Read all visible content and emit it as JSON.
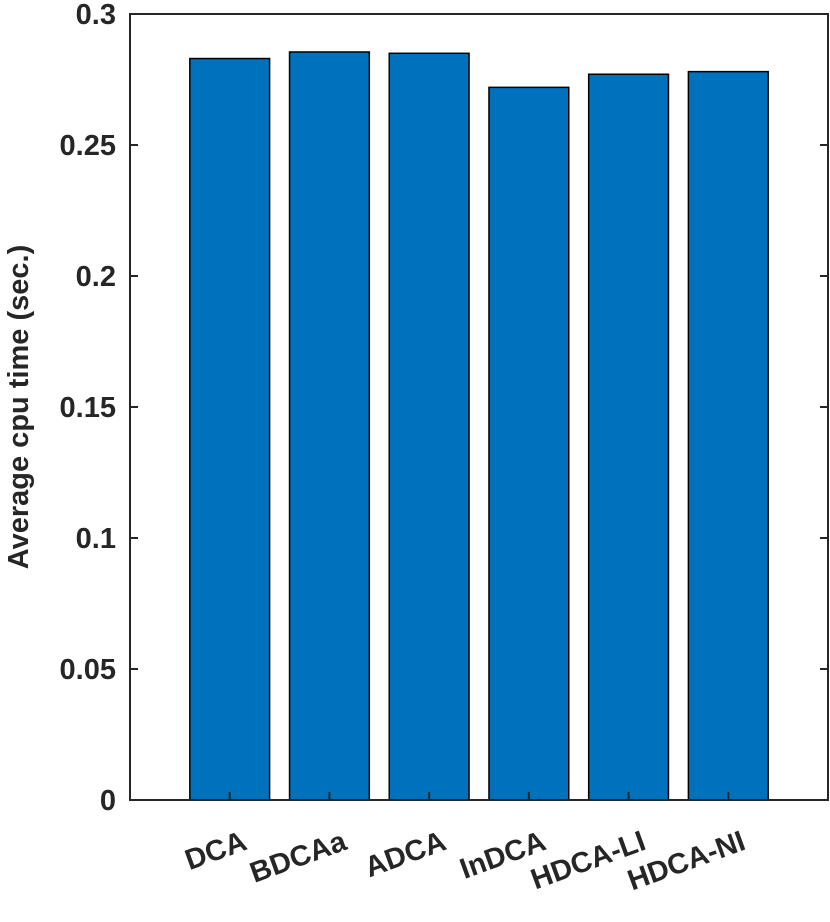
{
  "chart_data": {
    "type": "bar",
    "title": "",
    "xlabel": "",
    "ylabel": "Average cpu time (sec.)",
    "categories": [
      "DCA",
      "BDCAa",
      "ADCA",
      "InDCA",
      "HDCA-LI",
      "HDCA-NI"
    ],
    "values": [
      0.283,
      0.2855,
      0.285,
      0.272,
      0.277,
      0.278
    ],
    "ylim": [
      0,
      0.3
    ],
    "yticks": [
      0,
      0.05,
      0.1,
      0.15,
      0.2,
      0.25,
      0.3
    ],
    "ytick_labels": [
      "0",
      "0.05",
      "0.1",
      "0.15",
      "0.2",
      "0.25",
      "0.3"
    ],
    "grid": false,
    "bar_color": "#0072BD",
    "x_tick_rotation_deg": -20
  }
}
